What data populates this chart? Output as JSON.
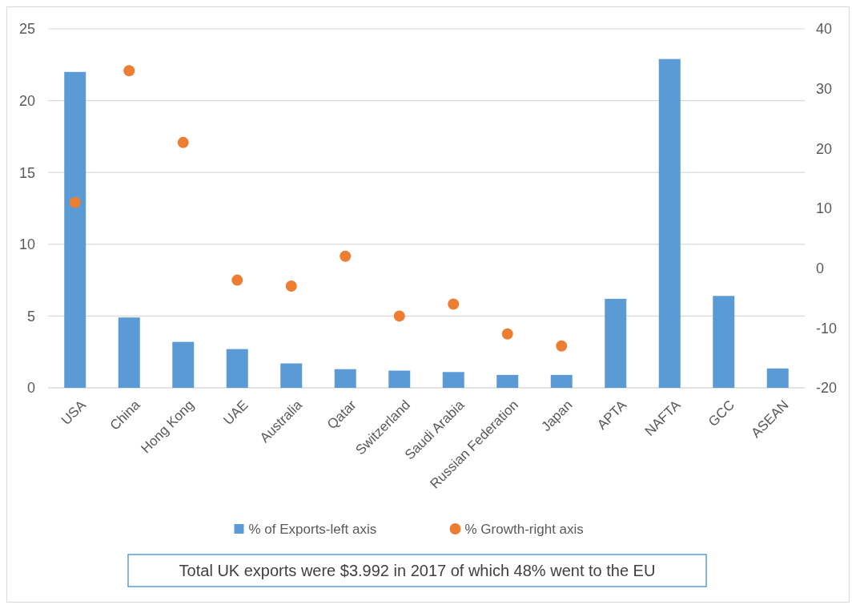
{
  "chart_data": {
    "type": "bar",
    "categories": [
      "USA",
      "China",
      "Hong Kong",
      "UAE",
      "Australia",
      "Qatar",
      "Switzerland",
      "Saudi Arabia",
      "Russian Federation",
      "Japan",
      "APTA",
      "NAFTA",
      "GCC",
      "ASEAN"
    ],
    "series": [
      {
        "name": "% of Exports-left axis",
        "color": "#5b9bd5",
        "values": [
          22,
          4.9,
          3.2,
          2.7,
          1.7,
          1.3,
          1.2,
          1.1,
          0.9,
          0.9,
          6.2,
          22.9,
          6.4,
          1.35
        ]
      },
      {
        "name": "% Growth-right axis",
        "type": "scatter",
        "axis": "y2",
        "color": "#ed7d31",
        "marker": "circle",
        "values": [
          11,
          33,
          21,
          -2,
          -3,
          2,
          -8,
          -6,
          -11,
          -13,
          null,
          null,
          null,
          null
        ]
      }
    ],
    "ylim": [
      0,
      25
    ],
    "yticks": [
      0,
      5,
      10,
      15,
      20,
      25
    ],
    "y2lim": [
      -20,
      40
    ],
    "y2ticks": [
      -20,
      -10,
      0,
      10,
      20,
      30,
      40
    ],
    "grid": "y",
    "legend": "bottom",
    "annotations": [
      "Total UK exports were $3.992 in 2017 of which 48% went to the EU"
    ]
  }
}
